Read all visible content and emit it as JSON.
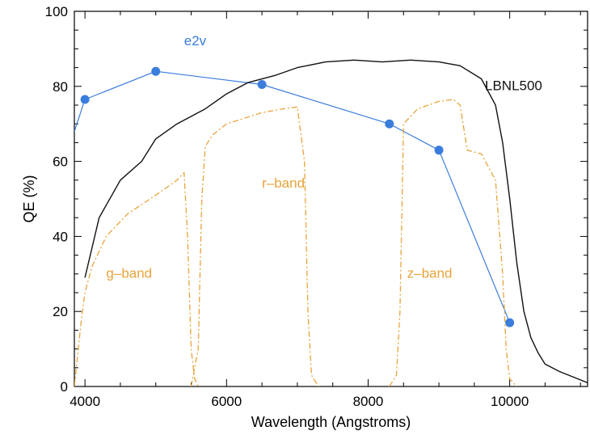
{
  "chart_data": {
    "type": "line",
    "title": "",
    "xlabel": "Wavelength (Angstroms)",
    "ylabel": "QE (%)",
    "xlim": [
      3850,
      11100
    ],
    "ylim": [
      0,
      100
    ],
    "x_ticks": [
      "4000",
      "6000",
      "8000",
      "10000"
    ],
    "y_ticks": [
      "0",
      "20",
      "40",
      "60",
      "80",
      "100"
    ],
    "grid": false,
    "colors": {
      "e2v": "#3b7ddd",
      "lbnl": "#111111",
      "filter": "#e8a33a"
    },
    "series": [
      {
        "name": "e2v",
        "style": "line+markers",
        "x": [
          3850,
          4000,
          5000,
          6500,
          8300,
          9000,
          10000
        ],
        "y": [
          68,
          76.5,
          84,
          80.5,
          70,
          63,
          17
        ],
        "markers_from_index": 1
      },
      {
        "name": "LBNL500",
        "style": "solid",
        "x": [
          4000,
          4200,
          4500,
          4800,
          5000,
          5300,
          5700,
          6000,
          6300,
          6700,
          7000,
          7400,
          7800,
          8200,
          8600,
          9000,
          9300,
          9600,
          9800,
          9900,
          10000,
          10100,
          10200,
          10300,
          10400,
          10500,
          10700,
          10900,
          11100
        ],
        "y": [
          29,
          45,
          55,
          60,
          66,
          70,
          74,
          78,
          81,
          83,
          85,
          86.5,
          87,
          86.5,
          87,
          86.5,
          85.5,
          82,
          75,
          65,
          50,
          33,
          20,
          13,
          9,
          6,
          4,
          2.5,
          1
        ]
      },
      {
        "name": "g-band",
        "style": "dash-dot",
        "x": [
          3850,
          3950,
          4000,
          4100,
          4300,
          4600,
          5000,
          5300,
          5400,
          5450,
          5500,
          5550,
          5600
        ],
        "y": [
          0,
          18,
          25,
          32,
          40,
          46,
          51,
          55,
          57,
          40,
          10,
          2,
          0
        ]
      },
      {
        "name": "r-band",
        "style": "dash-dot",
        "x": [
          5500,
          5600,
          5650,
          5700,
          5800,
          6000,
          6500,
          6800,
          7000,
          7100,
          7150,
          7200,
          7300
        ],
        "y": [
          0,
          10,
          50,
          64,
          67,
          70,
          73,
          74,
          74.5,
          60,
          20,
          3,
          0
        ]
      },
      {
        "name": "z-band",
        "style": "dash-dot",
        "x": [
          8300,
          8400,
          8450,
          8500,
          8700,
          9000,
          9200,
          9300,
          9400,
          9600,
          9800,
          9900,
          9950,
          10000,
          10100
        ],
        "y": [
          0,
          3,
          20,
          70,
          74,
          76,
          76.5,
          75,
          63,
          62,
          55,
          30,
          10,
          2,
          0
        ]
      }
    ],
    "annotations": [
      {
        "text": "e2v",
        "x": 5400,
        "y": 91,
        "series": "e2v"
      },
      {
        "text": "LBNL500",
        "x": 9650,
        "y": 79,
        "series": "LBNL500"
      },
      {
        "text": "g–band",
        "x": 4300,
        "y": 29,
        "series": "g-band"
      },
      {
        "text": "r–band",
        "x": 6500,
        "y": 53,
        "series": "r-band"
      },
      {
        "text": "z–band",
        "x": 8550,
        "y": 29,
        "series": "z-band"
      }
    ]
  }
}
